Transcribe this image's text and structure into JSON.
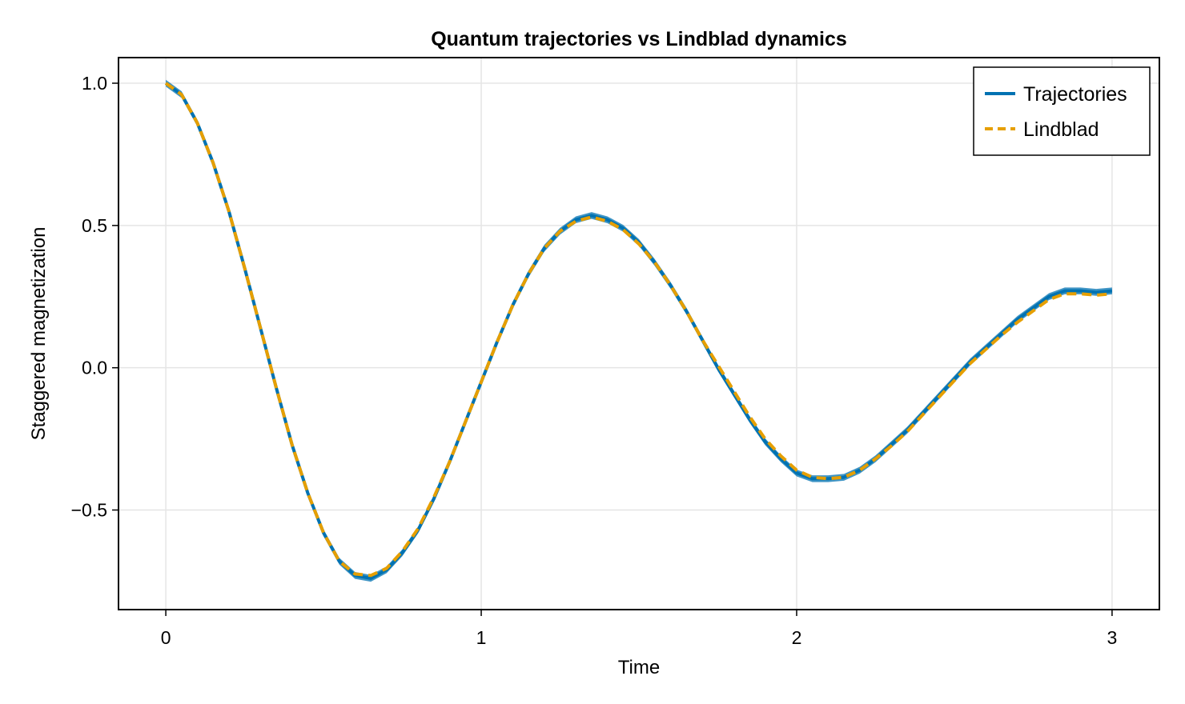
{
  "chart_data": {
    "type": "line",
    "title": "Quantum trajectories vs Lindblad dynamics",
    "xlabel": "Time",
    "ylabel": "Staggered magnetization",
    "xlim": [
      -0.15,
      3.15
    ],
    "ylim": [
      -0.85,
      1.09
    ],
    "xticks": [
      0,
      1,
      2,
      3
    ],
    "xtick_labels": [
      "0",
      "1",
      "2",
      "3"
    ],
    "yticks": [
      -0.5,
      0.0,
      0.5,
      1.0
    ],
    "ytick_labels": [
      "−0.5",
      "0.0",
      "0.5",
      "1.0"
    ],
    "grid": true,
    "legend": {
      "position": "top-right"
    },
    "x": [
      0,
      0.05,
      0.1,
      0.15,
      0.2,
      0.25,
      0.3,
      0.35,
      0.4,
      0.45,
      0.5,
      0.55,
      0.6,
      0.65,
      0.7,
      0.75,
      0.8,
      0.85,
      0.9,
      0.95,
      1.0,
      1.05,
      1.1,
      1.15,
      1.2,
      1.25,
      1.3,
      1.35,
      1.4,
      1.45,
      1.5,
      1.55,
      1.6,
      1.65,
      1.7,
      1.75,
      1.8,
      1.85,
      1.9,
      1.95,
      2.0,
      2.05,
      2.1,
      2.15,
      2.2,
      2.25,
      2.3,
      2.35,
      2.4,
      2.45,
      2.5,
      2.55,
      2.6,
      2.65,
      2.7,
      2.75,
      2.8,
      2.85,
      2.9,
      2.95,
      3.0
    ],
    "series": [
      {
        "name": "Trajectories",
        "color": "#0072b2",
        "style": "solid",
        "band_half_width": 0.012,
        "values": [
          1.0,
          0.96,
          0.86,
          0.72,
          0.55,
          0.35,
          0.14,
          -0.07,
          -0.27,
          -0.44,
          -0.58,
          -0.68,
          -0.73,
          -0.74,
          -0.71,
          -0.65,
          -0.57,
          -0.46,
          -0.33,
          -0.19,
          -0.05,
          0.09,
          0.22,
          0.33,
          0.42,
          0.48,
          0.52,
          0.535,
          0.52,
          0.49,
          0.44,
          0.37,
          0.29,
          0.2,
          0.1,
          0.0,
          -0.09,
          -0.18,
          -0.26,
          -0.32,
          -0.37,
          -0.39,
          -0.39,
          -0.385,
          -0.36,
          -0.32,
          -0.27,
          -0.22,
          -0.16,
          -0.1,
          -0.04,
          0.02,
          0.07,
          0.12,
          0.17,
          0.21,
          0.25,
          0.27,
          0.27,
          0.265,
          0.27
        ]
      },
      {
        "name": "Lindblad",
        "color": "#e69f00",
        "style": "dashed",
        "values": [
          1.0,
          0.96,
          0.86,
          0.72,
          0.55,
          0.35,
          0.14,
          -0.07,
          -0.27,
          -0.44,
          -0.58,
          -0.68,
          -0.725,
          -0.73,
          -0.705,
          -0.645,
          -0.565,
          -0.455,
          -0.33,
          -0.19,
          -0.05,
          0.09,
          0.22,
          0.33,
          0.42,
          0.48,
          0.515,
          0.53,
          0.515,
          0.485,
          0.435,
          0.37,
          0.29,
          0.2,
          0.1,
          0.01,
          -0.08,
          -0.17,
          -0.25,
          -0.31,
          -0.36,
          -0.385,
          -0.39,
          -0.385,
          -0.36,
          -0.32,
          -0.275,
          -0.225,
          -0.165,
          -0.105,
          -0.045,
          0.015,
          0.065,
          0.115,
          0.16,
          0.2,
          0.24,
          0.26,
          0.26,
          0.255,
          0.26
        ]
      }
    ]
  }
}
